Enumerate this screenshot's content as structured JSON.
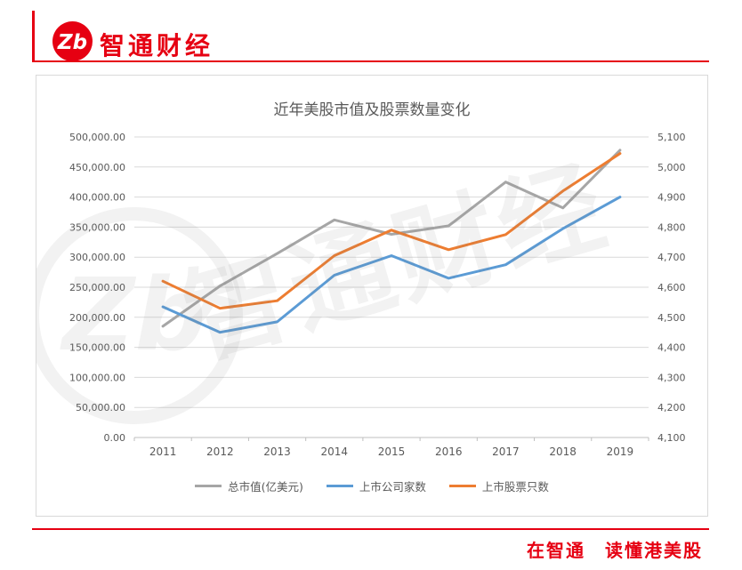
{
  "brand": {
    "name": "智通财经",
    "logo_glyph": "Zb",
    "slogan": "在智通　读懂港美股",
    "accent_color": "#e60012"
  },
  "watermark": {
    "text": "智通财经",
    "glyph": "Zb"
  },
  "chart_data": {
    "type": "line",
    "title": "近年美股市值及股票数量变化",
    "categories": [
      "2011",
      "2012",
      "2013",
      "2014",
      "2015",
      "2016",
      "2017",
      "2018",
      "2019"
    ],
    "series": [
      {
        "name": "总市值(亿美元)",
        "axis": "left",
        "color": "#a6a6a6",
        "values": [
          185000,
          252000,
          306000,
          362000,
          338000,
          352000,
          425000,
          382000,
          478000
        ]
      },
      {
        "name": "上市公司家数",
        "axis": "right",
        "color": "#5b9bd5",
        "values": [
          4535,
          4450,
          4485,
          4640,
          4705,
          4630,
          4675,
          4795,
          4900
        ]
      },
      {
        "name": "上市股票只数",
        "axis": "right",
        "color": "#ed7d31",
        "values": [
          4620,
          4530,
          4555,
          4705,
          4790,
          4725,
          4775,
          4920,
          5045
        ]
      }
    ],
    "left_axis": {
      "min": 0,
      "max": 500000,
      "step": 50000,
      "tick_labels": [
        "500,000.00",
        "450,000.00",
        "400,000.00",
        "350,000.00",
        "300,000.00",
        "250,000.00",
        "200,000.00",
        "150,000.00",
        "100,000.00",
        "50,000.00",
        "0.00"
      ]
    },
    "right_axis": {
      "min": 4100,
      "max": 5100,
      "step": 100,
      "tick_labels": [
        "5,100",
        "5,000",
        "4,900",
        "4,800",
        "4,700",
        "4,600",
        "4,500",
        "4,400",
        "4,300",
        "4,200",
        "4,100"
      ]
    },
    "grid": true,
    "legend_position": "bottom"
  }
}
